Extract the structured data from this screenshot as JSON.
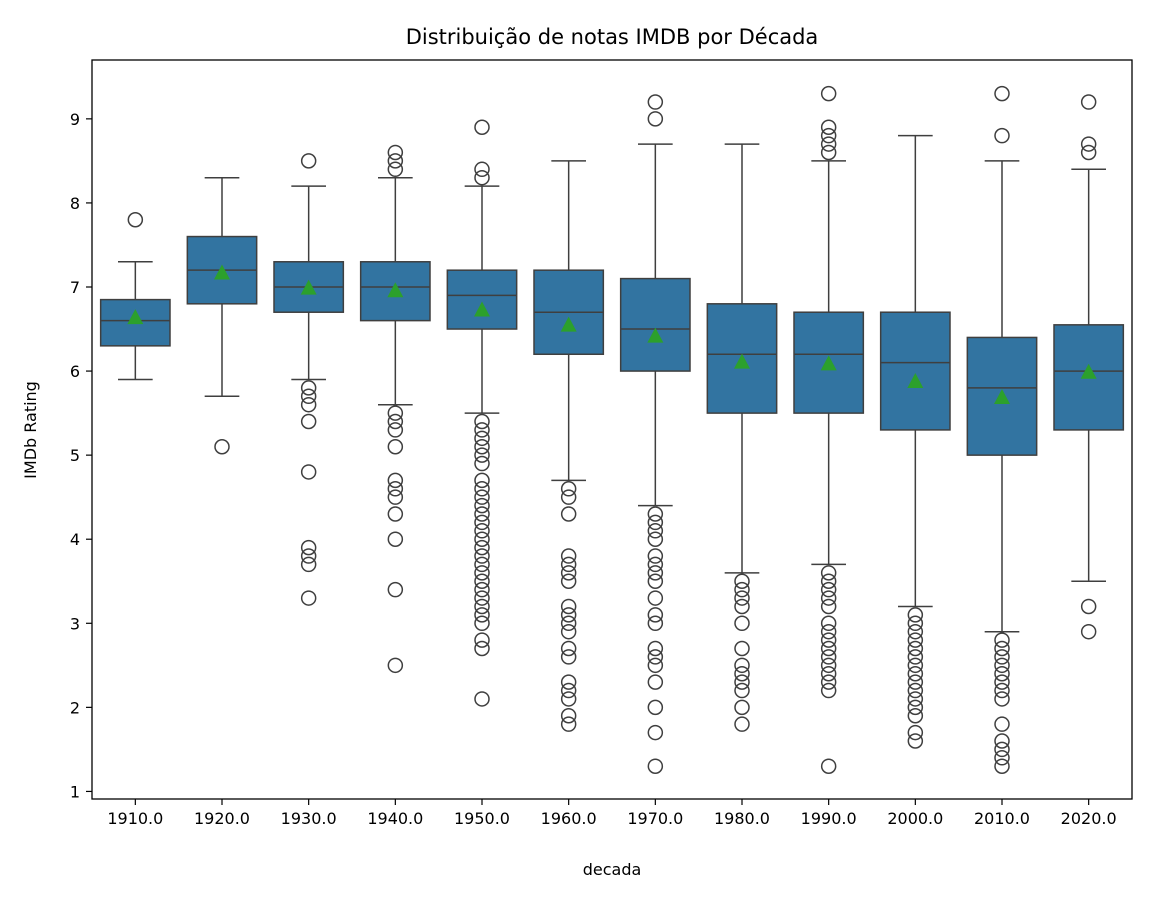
{
  "chart_data": {
    "type": "boxplot",
    "title": "Distribuição de notas IMDB por Década",
    "xlabel": "decada",
    "ylabel": "IMDb Rating",
    "ylim": [
      0.91,
      9.7
    ],
    "yticks": [
      1,
      2,
      3,
      4,
      5,
      6,
      7,
      8,
      9
    ],
    "grid": false,
    "colors": {
      "box": "#3274a1",
      "line": "#3f3f3f",
      "mean": "#2ca02c"
    },
    "categories": [
      "1910.0",
      "1920.0",
      "1930.0",
      "1940.0",
      "1950.0",
      "1960.0",
      "1970.0",
      "1980.0",
      "1990.0",
      "2000.0",
      "2010.0",
      "2020.0"
    ],
    "boxes": [
      {
        "whislo": 5.9,
        "q1": 6.3,
        "med": 6.6,
        "q3": 6.85,
        "whishi": 7.3,
        "mean": 6.63,
        "fliers": [
          7.8
        ]
      },
      {
        "whislo": 5.7,
        "q1": 6.8,
        "med": 7.2,
        "q3": 7.6,
        "whishi": 8.3,
        "mean": 7.16,
        "fliers": [
          5.1
        ]
      },
      {
        "whislo": 5.9,
        "q1": 6.7,
        "med": 7.0,
        "q3": 7.3,
        "whishi": 8.2,
        "mean": 6.98,
        "fliers": [
          8.5,
          5.8,
          5.7,
          5.6,
          5.4,
          4.8,
          3.9,
          3.8,
          3.7,
          3.3
        ]
      },
      {
        "whislo": 5.6,
        "q1": 6.6,
        "med": 7.0,
        "q3": 7.3,
        "whishi": 8.3,
        "mean": 6.95,
        "fliers": [
          8.4,
          8.5,
          8.6,
          5.5,
          5.4,
          5.3,
          5.1,
          4.7,
          4.6,
          4.5,
          4.3,
          4.0,
          3.4,
          2.5
        ]
      },
      {
        "whislo": 5.5,
        "q1": 6.5,
        "med": 6.9,
        "q3": 7.2,
        "whishi": 8.2,
        "mean": 6.72,
        "fliers": [
          8.3,
          8.4,
          8.9,
          5.4,
          5.3,
          5.2,
          5.1,
          5.0,
          4.9,
          4.7,
          4.6,
          4.5,
          4.4,
          4.3,
          4.2,
          4.1,
          4.0,
          3.9,
          3.8,
          3.7,
          3.6,
          3.5,
          3.4,
          3.3,
          3.2,
          3.1,
          3.0,
          2.8,
          2.7,
          2.1
        ]
      },
      {
        "whislo": 4.7,
        "q1": 6.2,
        "med": 6.7,
        "q3": 7.2,
        "whishi": 8.5,
        "mean": 6.54,
        "fliers": [
          4.6,
          4.5,
          4.3,
          3.8,
          3.7,
          3.6,
          3.5,
          3.2,
          3.1,
          3.0,
          2.9,
          2.7,
          2.6,
          2.3,
          2.2,
          2.1,
          1.9,
          1.8
        ]
      },
      {
        "whislo": 4.4,
        "q1": 6.0,
        "med": 6.5,
        "q3": 7.1,
        "whishi": 8.7,
        "mean": 6.41,
        "fliers": [
          9.0,
          9.2,
          4.3,
          4.2,
          4.1,
          4.0,
          3.8,
          3.7,
          3.6,
          3.5,
          3.3,
          3.1,
          3.0,
          2.7,
          2.6,
          2.5,
          2.3,
          2.0,
          1.7,
          1.3
        ]
      },
      {
        "whislo": 3.6,
        "q1": 5.5,
        "med": 6.2,
        "q3": 6.8,
        "whishi": 8.7,
        "mean": 6.1,
        "fliers": [
          3.5,
          3.4,
          3.3,
          3.2,
          3.0,
          2.7,
          2.5,
          2.4,
          2.3,
          2.2,
          2.0,
          1.8
        ]
      },
      {
        "whislo": 3.7,
        "q1": 5.5,
        "med": 6.2,
        "q3": 6.7,
        "whishi": 8.5,
        "mean": 6.08,
        "fliers": [
          8.6,
          8.7,
          8.8,
          8.9,
          9.3,
          3.6,
          3.5,
          3.4,
          3.3,
          3.2,
          3.0,
          2.9,
          2.8,
          2.7,
          2.6,
          2.5,
          2.4,
          2.3,
          2.2,
          1.3
        ]
      },
      {
        "whislo": 3.2,
        "q1": 5.3,
        "med": 6.1,
        "q3": 6.7,
        "whishi": 8.8,
        "mean": 5.87,
        "fliers": [
          3.1,
          3.0,
          2.9,
          2.8,
          2.7,
          2.6,
          2.5,
          2.4,
          2.3,
          2.2,
          2.1,
          2.0,
          1.9,
          1.7,
          1.6
        ]
      },
      {
        "whislo": 2.9,
        "q1": 5.0,
        "med": 5.8,
        "q3": 6.4,
        "whishi": 8.5,
        "mean": 5.68,
        "fliers": [
          8.8,
          9.3,
          2.8,
          2.7,
          2.6,
          2.5,
          2.4,
          2.3,
          2.2,
          2.1,
          1.8,
          1.6,
          1.5,
          1.4,
          1.3
        ]
      },
      {
        "whislo": 3.5,
        "q1": 5.3,
        "med": 6.0,
        "q3": 6.55,
        "whishi": 8.4,
        "mean": 5.98,
        "fliers": [
          8.6,
          8.7,
          9.2,
          3.2,
          2.9
        ]
      }
    ]
  }
}
